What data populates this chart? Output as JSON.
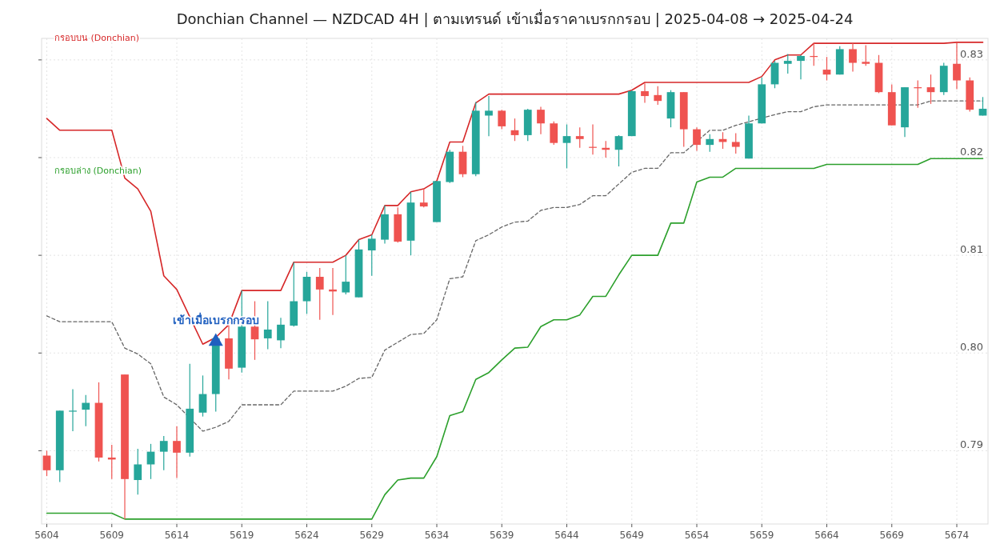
{
  "chart_data": {
    "type": "candlestick",
    "title": "Donchian Channel — NZDCAD 4H  |  ตามเทรนด์ เข้าเมื่อราคาเบรกกรอบ  |  2025-04-08 → 2025-04-24",
    "x": [
      5604,
      5605,
      5606,
      5607,
      5608,
      5609,
      5610,
      5611,
      5612,
      5613,
      5614,
      5615,
      5616,
      5617,
      5618,
      5619,
      5620,
      5621,
      5622,
      5623,
      5624,
      5625,
      5626,
      5627,
      5628,
      5629,
      5630,
      5631,
      5632,
      5633,
      5634,
      5635,
      5636,
      5637,
      5638,
      5639,
      5640,
      5641,
      5642,
      5643,
      5644,
      5645,
      5646,
      5647,
      5648,
      5649,
      5650,
      5651,
      5652,
      5653,
      5654,
      5655,
      5656,
      5657,
      5658,
      5659,
      5660,
      5661,
      5662,
      5663,
      5664,
      5665,
      5666,
      5667,
      5668,
      5669,
      5670,
      5671,
      5672,
      5673,
      5674,
      5675,
      5676
    ],
    "xlim": [
      5603.6,
      5676.4
    ],
    "xticks": [
      5604,
      5609,
      5614,
      5619,
      5624,
      5629,
      5634,
      5639,
      5644,
      5649,
      5654,
      5659,
      5664,
      5669,
      5674
    ],
    "ylim": [
      0.7825,
      0.8322
    ],
    "yticks": [
      0.79,
      {
        "value": 0.8,
        "label": "0.80"
      },
      0.81,
      0.82,
      0.83
    ],
    "grid": true,
    "ohlc": [
      [
        0.7895,
        0.79,
        0.7874,
        0.788
      ],
      [
        0.788,
        0.7941,
        0.7868,
        0.7941
      ],
      [
        0.794,
        0.7963,
        0.792,
        0.7941
      ],
      [
        0.7942,
        0.7957,
        0.7925,
        0.7949
      ],
      [
        0.7949,
        0.797,
        0.7889,
        0.7893
      ],
      [
        0.7893,
        0.7906,
        0.7871,
        0.7891
      ],
      [
        0.7978,
        0.7978,
        0.783,
        0.7871
      ],
      [
        0.787,
        0.7902,
        0.7855,
        0.7886
      ],
      [
        0.7886,
        0.7907,
        0.7871,
        0.7899
      ],
      [
        0.7899,
        0.7915,
        0.788,
        0.791
      ],
      [
        0.791,
        0.7925,
        0.7872,
        0.7898
      ],
      [
        0.7898,
        0.7989,
        0.7894,
        0.7943
      ],
      [
        0.7939,
        0.7977,
        0.7935,
        0.7958
      ],
      [
        0.7958,
        0.8016,
        0.794,
        0.8015
      ],
      [
        0.8015,
        0.8029,
        0.7973,
        0.7984
      ],
      [
        0.7985,
        0.8064,
        0.798,
        0.8027
      ],
      [
        0.8027,
        0.8053,
        0.7993,
        0.8014
      ],
      [
        0.8015,
        0.8053,
        0.8004,
        0.8024
      ],
      [
        0.8013,
        0.8036,
        0.8005,
        0.8029
      ],
      [
        0.8028,
        0.8093,
        0.8027,
        0.8053
      ],
      [
        0.8053,
        0.8083,
        0.804,
        0.8078
      ],
      [
        0.8078,
        0.8087,
        0.8034,
        0.8065
      ],
      [
        0.8065,
        0.8087,
        0.8039,
        0.8063
      ],
      [
        0.8062,
        0.81,
        0.806,
        0.8073
      ],
      [
        0.8057,
        0.8116,
        0.8057,
        0.8106
      ],
      [
        0.8105,
        0.8121,
        0.8079,
        0.8117
      ],
      [
        0.8116,
        0.8151,
        0.8112,
        0.8142
      ],
      [
        0.8142,
        0.8149,
        0.8113,
        0.8114
      ],
      [
        0.8115,
        0.8165,
        0.81,
        0.8154
      ],
      [
        0.8154,
        0.8168,
        0.8149,
        0.815
      ],
      [
        0.8134,
        0.8176,
        0.8134,
        0.8176
      ],
      [
        0.8175,
        0.8208,
        0.8174,
        0.8206
      ],
      [
        0.8206,
        0.8212,
        0.818,
        0.8183
      ],
      [
        0.8183,
        0.8257,
        0.8181,
        0.8248
      ],
      [
        0.8243,
        0.8263,
        0.8222,
        0.8248
      ],
      [
        0.8248,
        0.8249,
        0.8229,
        0.8232
      ],
      [
        0.8228,
        0.824,
        0.8217,
        0.8223
      ],
      [
        0.8223,
        0.825,
        0.8217,
        0.8249
      ],
      [
        0.8249,
        0.8252,
        0.8224,
        0.8235
      ],
      [
        0.8235,
        0.8237,
        0.8213,
        0.8215
      ],
      [
        0.8215,
        0.8234,
        0.8189,
        0.8222
      ],
      [
        0.8222,
        0.8231,
        0.821,
        0.8219
      ],
      [
        0.8211,
        0.8234,
        0.8203,
        0.821
      ],
      [
        0.821,
        0.8217,
        0.82,
        0.8208
      ],
      [
        0.8208,
        0.8223,
        0.8191,
        0.8222
      ],
      [
        0.8222,
        0.8269,
        0.8222,
        0.8268
      ],
      [
        0.8268,
        0.8276,
        0.8256,
        0.8263
      ],
      [
        0.8264,
        0.8273,
        0.8254,
        0.8258
      ],
      [
        0.824,
        0.8269,
        0.8231,
        0.8267
      ],
      [
        0.8267,
        0.8267,
        0.8211,
        0.8229
      ],
      [
        0.8229,
        0.8231,
        0.8207,
        0.8213
      ],
      [
        0.8213,
        0.8224,
        0.8206,
        0.8219
      ],
      [
        0.8219,
        0.8226,
        0.8209,
        0.8216
      ],
      [
        0.8216,
        0.8225,
        0.8204,
        0.8211
      ],
      [
        0.8199,
        0.8243,
        0.8199,
        0.8235
      ],
      [
        0.8235,
        0.8282,
        0.8235,
        0.8275
      ],
      [
        0.8275,
        0.8299,
        0.8271,
        0.8297
      ],
      [
        0.8296,
        0.8306,
        0.8286,
        0.8299
      ],
      [
        0.8299,
        0.8305,
        0.828,
        0.8304
      ],
      [
        0.8304,
        0.8317,
        0.8294,
        0.8303
      ],
      [
        0.829,
        0.8303,
        0.8279,
        0.8285
      ],
      [
        0.8285,
        0.8314,
        0.8285,
        0.8311
      ],
      [
        0.8311,
        0.8317,
        0.8288,
        0.8297
      ],
      [
        0.8298,
        0.8315,
        0.8294,
        0.8296
      ],
      [
        0.8297,
        0.8305,
        0.8266,
        0.8267
      ],
      [
        0.8267,
        0.8275,
        0.8233,
        0.8233
      ],
      [
        0.8231,
        0.8272,
        0.8221,
        0.8272
      ],
      [
        0.8272,
        0.8279,
        0.8251,
        0.8271
      ],
      [
        0.8272,
        0.8285,
        0.8255,
        0.8267
      ],
      [
        0.8267,
        0.8297,
        0.8264,
        0.8294
      ],
      [
        0.8296,
        0.8318,
        0.827,
        0.8279
      ],
      [
        0.8279,
        0.8282,
        0.8247,
        0.8249
      ],
      [
        0.8243,
        0.8262,
        0.8243,
        0.825
      ]
    ],
    "colors": [
      "#ef5350",
      "#26a69a",
      "#26a69a",
      "#26a69a",
      "#ef5350",
      "#ef5350",
      "#ef5350",
      "#26a69a",
      "#26a69a",
      "#26a69a",
      "#ef5350",
      "#26a69a",
      "#26a69a",
      "#26a69a",
      "#ef5350",
      "#26a69a",
      "#ef5350",
      "#26a69a",
      "#26a69a",
      "#26a69a",
      "#26a69a",
      "#ef5350",
      "#ef5350",
      "#26a69a",
      "#26a69a",
      "#26a69a",
      "#26a69a",
      "#ef5350",
      "#26a69a",
      "#ef5350",
      "#26a69a",
      "#26a69a",
      "#ef5350",
      "#26a69a",
      "#26a69a",
      "#ef5350",
      "#ef5350",
      "#26a69a",
      "#ef5350",
      "#ef5350",
      "#26a69a",
      "#ef5350",
      "#ef5350",
      "#ef5350",
      "#26a69a",
      "#26a69a",
      "#ef5350",
      "#ef5350",
      "#26a69a",
      "#ef5350",
      "#ef5350",
      "#26a69a",
      "#ef5350",
      "#ef5350",
      "#26a69a",
      "#26a69a",
      "#26a69a",
      "#26a69a",
      "#26a69a",
      "#ef5350",
      "#ef5350",
      "#26a69a",
      "#ef5350",
      "#ef5350",
      "#ef5350",
      "#ef5350",
      "#26a69a",
      "#ef5350",
      "#ef5350",
      "#26a69a",
      "#ef5350",
      "#ef5350",
      "#26a69a"
    ],
    "series": [
      {
        "type": "line",
        "name": "กรอบบน (Donchian)",
        "color": "#d62728",
        "values": [
          0.824,
          0.8228,
          0.8228,
          0.8228,
          0.8228,
          0.8228,
          0.8179,
          0.8168,
          0.8145,
          0.8079,
          0.8065,
          0.8037,
          0.8009,
          0.8016,
          0.8029,
          0.8064,
          0.8064,
          0.8064,
          0.8064,
          0.8093,
          0.8093,
          0.8093,
          0.8093,
          0.81,
          0.8116,
          0.8121,
          0.8151,
          0.8151,
          0.8165,
          0.8168,
          0.8176,
          0.8216,
          0.8216,
          0.8256,
          0.8265,
          0.8265,
          0.8265,
          0.8265,
          0.8265,
          0.8265,
          0.8265,
          0.8265,
          0.8265,
          0.8265,
          0.8265,
          0.8269,
          0.8277,
          0.8277,
          0.8277,
          0.8277,
          0.8277,
          0.8277,
          0.8277,
          0.8277,
          0.8277,
          0.8283,
          0.83,
          0.8305,
          0.8305,
          0.8317,
          0.8317,
          0.8317,
          0.8317,
          0.8317,
          0.8317,
          0.8317,
          0.8317,
          0.8317,
          0.8317,
          0.8317,
          0.8318,
          0.8318,
          0.8318
        ]
      },
      {
        "type": "line",
        "color": "#666666",
        "line_style": "dashed",
        "values": [
          0.8038,
          0.8032,
          0.8032,
          0.8032,
          0.8032,
          0.8032,
          0.8005,
          0.7999,
          0.7989,
          0.7955,
          0.7947,
          null,
          0.792,
          0.7924,
          0.793,
          0.7947,
          0.7947,
          0.7947,
          0.7947,
          0.7961,
          0.7961,
          0.7961,
          0.7961,
          0.7966,
          0.7974,
          0.7975,
          0.8003,
          0.8011,
          0.8019,
          0.802,
          0.8034,
          0.8076,
          0.8078,
          0.8115,
          0.8121,
          0.8129,
          0.8134,
          0.8135,
          0.8146,
          0.8149,
          0.8149,
          0.8152,
          0.8161,
          0.8161,
          0.8173,
          0.8185,
          0.8189,
          0.8189,
          0.8205,
          0.8205,
          null,
          0.8228,
          0.8228,
          0.8233,
          null,
          null,
          0.8244,
          0.8247,
          0.8247,
          0.8252,
          0.8254,
          0.8254,
          0.8254,
          0.8254,
          0.8254,
          null,
          null,
          0.8254,
          0.8258,
          0.8258,
          0.8258,
          null,
          0.8258
        ]
      },
      {
        "type": "line",
        "name": "กรอบล่าง (Donchian)",
        "color": "#2ca02c",
        "values": [
          0.7836,
          0.7836,
          0.7836,
          0.7836,
          0.7836,
          0.7836,
          0.783,
          0.783,
          0.783,
          0.783,
          0.783,
          0.783,
          0.783,
          0.783,
          0.783,
          0.783,
          0.783,
          0.783,
          0.783,
          0.783,
          0.783,
          0.783,
          0.783,
          0.783,
          0.783,
          0.783,
          0.7855,
          0.787,
          0.7872,
          0.7872,
          0.7894,
          0.7936,
          0.794,
          0.7973,
          0.798,
          0.7993,
          0.8005,
          0.8006,
          0.8027,
          0.8034,
          0.8034,
          0.8039,
          0.8058,
          0.8058,
          0.808,
          0.81,
          0.81,
          0.81,
          0.8133,
          0.8133,
          0.8175,
          0.818,
          0.818,
          0.8189,
          0.8189,
          0.8189,
          0.8189,
          0.8189,
          0.8189,
          0.8189,
          0.8193,
          0.8193,
          0.8193,
          0.8193,
          0.8193,
          0.8193,
          0.8193,
          0.8193,
          0.8199,
          0.8199,
          0.8199,
          0.8199,
          0.8199
        ]
      },
      {
        "type": "scatter",
        "name": "เข้าเมื่อเบรกกรอบ",
        "color": "#1f5fbf",
        "marker": "triangle",
        "x": [
          5617
        ],
        "values": [
          0.8013
        ]
      }
    ]
  }
}
